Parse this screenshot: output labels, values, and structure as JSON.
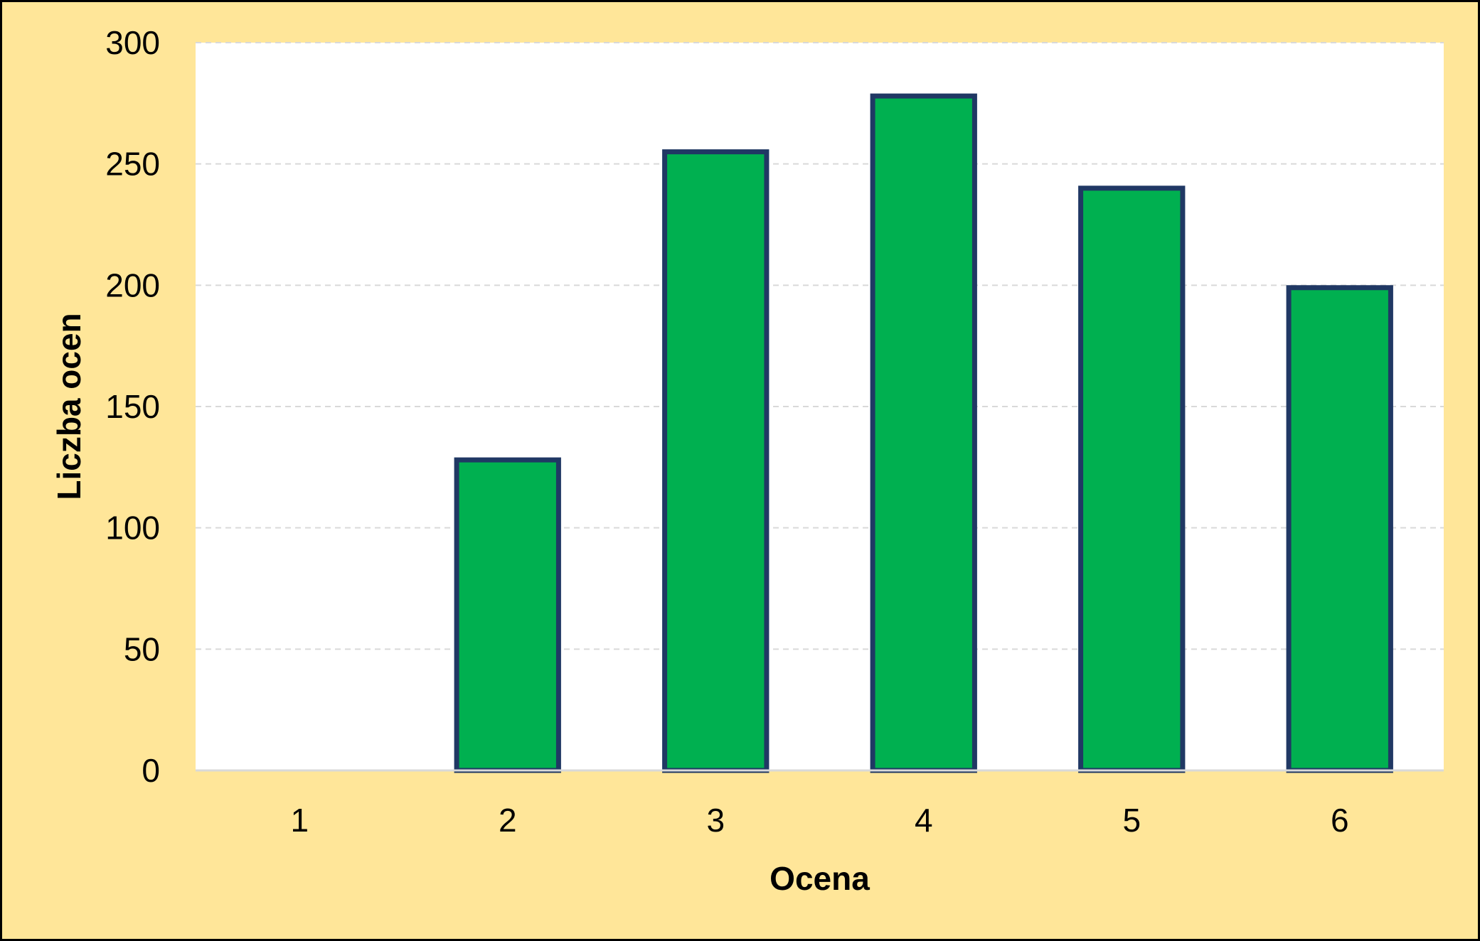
{
  "chart_data": {
    "type": "bar",
    "title": "",
    "xlabel": "Ocena",
    "ylabel": "Liczba ocen",
    "categories": [
      "1",
      "2",
      "3",
      "4",
      "5",
      "6"
    ],
    "values": [
      0,
      128,
      255,
      278,
      240,
      199
    ],
    "ylim": [
      0,
      300
    ],
    "yticks": [
      "0",
      "50",
      "100",
      "150",
      "200",
      "250",
      "300"
    ],
    "grid": true,
    "legend": "none"
  },
  "colors": {
    "background": "#FFE699",
    "plot_area": "#FFFFFF",
    "bar_fill": "#00B050",
    "bar_border": "#203864",
    "gridline": "#D9D9D9",
    "axis_line": "#D9D9D9"
  }
}
